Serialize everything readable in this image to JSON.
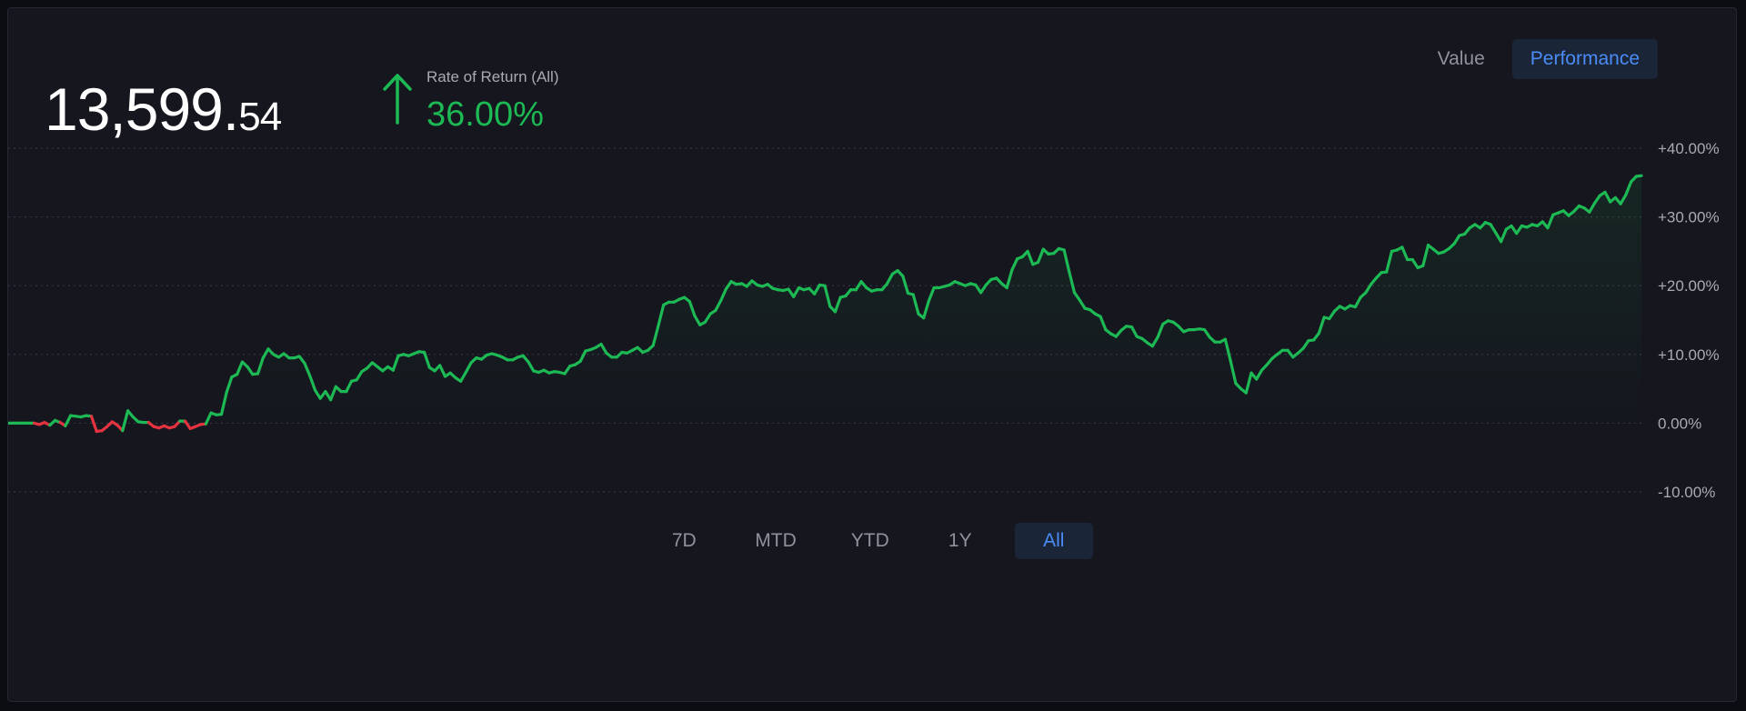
{
  "header": {
    "value_main": "13,599.",
    "value_cents": "54",
    "rate_label": "Rate of Return (All)",
    "rate_value": "36.00%"
  },
  "view_toggle": {
    "value_label": "Value",
    "performance_label": "Performance",
    "active": "Performance"
  },
  "range_tabs": [
    "7D",
    "MTD",
    "YTD",
    "1Y",
    "All"
  ],
  "active_range": "All",
  "colors": {
    "positive": "#1db954",
    "negative": "#e5343f",
    "accent": "#4a8cf5"
  },
  "icons": {
    "rate_direction": "arrow-up-icon"
  },
  "chart_data": {
    "type": "line",
    "title": "",
    "xlabel": "",
    "ylabel": "",
    "ylim": [
      -10,
      40
    ],
    "y_ticks": [
      {
        "value": 40,
        "label": "+40.00%"
      },
      {
        "value": 30,
        "label": "+30.00%"
      },
      {
        "value": 20,
        "label": "+20.00%"
      },
      {
        "value": 10,
        "label": "+10.00%"
      },
      {
        "value": 0,
        "label": "0.00%"
      },
      {
        "value": -10,
        "label": "-10.00%"
      }
    ],
    "grid": true,
    "series": [
      {
        "values": [
          0,
          0,
          0,
          0,
          0,
          0,
          -0.2,
          0.1,
          -0.3,
          0.4,
          0.1,
          -0.4,
          1.1,
          1,
          0.9,
          1.1,
          1,
          -1.2,
          -1.1,
          -0.5,
          0.2,
          -0.3,
          -1.1,
          1.8,
          0.9,
          0.2,
          0.1,
          0.1,
          -0.5,
          -0.7,
          -0.4,
          -0.7,
          -0.5,
          0.3,
          0.3,
          -0.8,
          -0.5,
          -0.2,
          -0.1,
          1.5,
          1.2,
          1.3,
          4.5,
          6.7,
          7.1,
          8.9,
          8.2,
          7.1,
          7.2,
          9.5,
          10.8,
          10,
          9.6,
          10.1,
          9.5,
          9.5,
          9.7,
          8.7,
          6.9,
          4.8,
          3.6,
          4.6,
          3.4,
          5.3,
          4.6,
          4.6,
          6.1,
          6.3,
          7.5,
          8,
          8.8,
          8.2,
          7.6,
          8.2,
          7.7,
          9.8,
          10,
          9.8,
          10.1,
          10.4,
          10.3,
          8.1,
          7.6,
          8.4,
          6.8,
          7.3,
          6.6,
          6.1,
          7.4,
          8.8,
          9.5,
          9.3,
          9.9,
          10.1,
          9.9,
          9.6,
          9.2,
          9.2,
          9.6,
          9.8,
          8.9,
          7.6,
          7.4,
          7.7,
          7.3,
          7.5,
          7.4,
          7.2,
          8.3,
          8.5,
          9,
          10.5,
          10.7,
          11,
          11.5,
          10.2,
          9.6,
          9.6,
          10.3,
          10.2,
          10.6,
          11,
          10.3,
          10.6,
          11.3,
          14.2,
          17.2,
          17.6,
          17.6,
          18,
          18.3,
          17.7,
          15.6,
          14.3,
          14.7,
          15.9,
          16.4,
          17.8,
          19.5,
          20.6,
          20.2,
          20.3,
          19.9,
          20.7,
          20.1,
          19.9,
          20.2,
          19.6,
          19.4,
          19.3,
          19.5,
          18.4,
          19.7,
          19.4,
          19.6,
          18.8,
          20.1,
          20,
          17,
          16.2,
          18.3,
          18.5,
          19.4,
          19.4,
          20.6,
          19.7,
          19.2,
          19.4,
          19.4,
          20.3,
          21.7,
          22.2,
          21.4,
          18.9,
          18.7,
          15.9,
          15.3,
          17.8,
          19.7,
          19.7,
          19.9,
          20.1,
          20.6,
          20.3,
          20,
          20.3,
          20.1,
          19,
          20.1,
          20.9,
          21.1,
          20.3,
          19.7,
          22.3,
          23.9,
          24.2,
          25,
          23.1,
          23.4,
          25.3,
          24.6,
          24.7,
          25.4,
          25.2,
          22,
          19,
          17.9,
          16.7,
          16.5,
          15.9,
          15.5,
          13.6,
          13,
          12.6,
          13.5,
          14.1,
          14,
          12.6,
          12.3,
          11.7,
          11.2,
          12.5,
          14.4,
          14.9,
          14.7,
          14.1,
          13.3,
          13.6,
          13.6,
          13.7,
          13.6,
          12.5,
          11.8,
          11.8,
          12.2,
          9.1,
          5.8,
          5,
          4.4,
          7.3,
          6.4,
          7.7,
          8.5,
          9.4,
          10,
          10.6,
          10.6,
          9.6,
          10.2,
          10.9,
          12,
          12.1,
          13.1,
          15.4,
          15.2,
          16.3,
          17,
          16.6,
          17.1,
          16.9,
          18.3,
          19,
          20.2,
          21.1,
          21.9,
          22,
          25,
          25.2,
          25.6,
          23.8,
          23.8,
          22.6,
          22.9,
          25.9,
          25.3,
          24.7,
          24.9,
          25.4,
          26.1,
          27.3,
          27.5,
          28.4,
          28.9,
          28.4,
          29.2,
          28.9,
          27.7,
          26.4,
          28.2,
          28.7,
          27.6,
          28.7,
          28.5,
          28.9,
          28.7,
          29.3,
          28.4,
          30.3,
          30.6,
          30.9,
          30.2,
          30.8,
          31.6,
          31.3,
          30.7,
          32,
          33.1,
          33.6,
          32.2,
          32.8,
          31.9,
          33.2,
          35.1,
          35.9,
          36
        ]
      }
    ]
  }
}
